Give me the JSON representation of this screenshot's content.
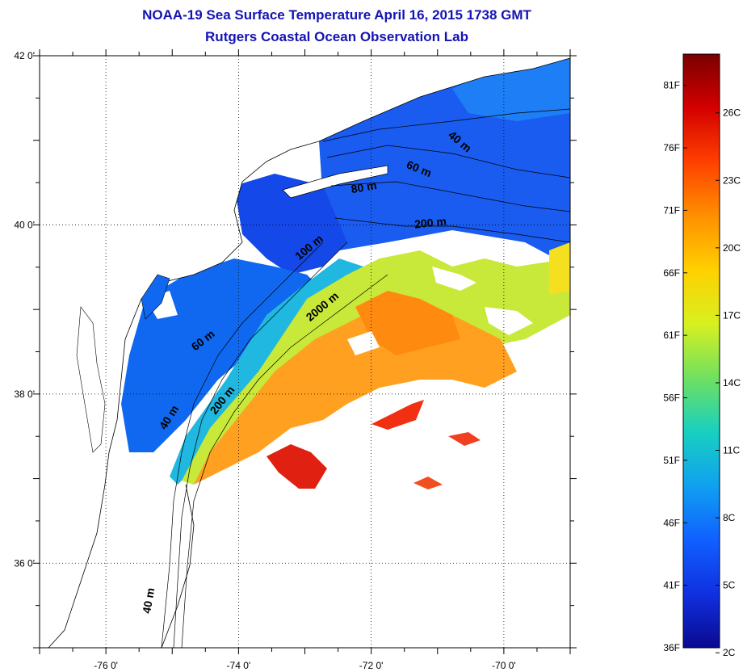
{
  "title": "NOAA-19 Sea Surface Temperature April 16, 2015 1738 GMT",
  "subtitle": "Rutgers Coastal Ocean Observation Lab",
  "map": {
    "lon_range": [
      -77,
      -69
    ],
    "lat_range": [
      35,
      42
    ],
    "lat_ticks": [
      {
        "value": 42,
        "label": "42 0'"
      },
      {
        "value": 40,
        "label": "40 0'"
      },
      {
        "value": 38,
        "label": "38 0'"
      },
      {
        "value": 36,
        "label": "36 0'"
      }
    ],
    "lon_ticks": [
      {
        "value": -76,
        "label": "-76 0'"
      },
      {
        "value": -74,
        "label": "-74 0'"
      },
      {
        "value": -72,
        "label": "-72 0'"
      },
      {
        "value": -70,
        "label": "-70 0'"
      }
    ],
    "isobath_labels": [
      {
        "text": "40 m",
        "lon": -70.7,
        "lat": 40.95,
        "angle": 40
      },
      {
        "text": "60 m",
        "lon": -71.3,
        "lat": 40.62,
        "angle": 22
      },
      {
        "text": "80 m",
        "lon": -72.1,
        "lat": 40.4,
        "angle": -10
      },
      {
        "text": "200 m",
        "lon": -71.1,
        "lat": 39.98,
        "angle": -6
      },
      {
        "text": "100 m",
        "lon": -72.9,
        "lat": 39.7,
        "angle": -40
      },
      {
        "text": "2000 m",
        "lon": -72.7,
        "lat": 39.0,
        "angle": -40
      },
      {
        "text": "60 m",
        "lon": -74.5,
        "lat": 38.6,
        "angle": -38
      },
      {
        "text": "200 m",
        "lon": -74.2,
        "lat": 37.9,
        "angle": -52
      },
      {
        "text": "40 m",
        "lon": -75.0,
        "lat": 37.7,
        "angle": -58
      },
      {
        "text": "40 m",
        "lon": -75.3,
        "lat": 35.55,
        "angle": -80
      }
    ]
  },
  "colorbar": {
    "f_labels": [
      "81F",
      "76F",
      "71F",
      "66F",
      "61F",
      "56F",
      "51F",
      "46F",
      "41F",
      "36F"
    ],
    "c_labels": [
      "26C",
      "23C",
      "20C",
      "17C",
      "14C",
      "11C",
      "8C",
      "5C",
      "2C"
    ],
    "colors": [
      "#7a0000",
      "#d40000",
      "#ff4000",
      "#ff9000",
      "#ffd000",
      "#d8f020",
      "#70e060",
      "#18d0c0",
      "#10a0f0",
      "#1060ff",
      "#1030e0",
      "#0a0a90"
    ]
  }
}
